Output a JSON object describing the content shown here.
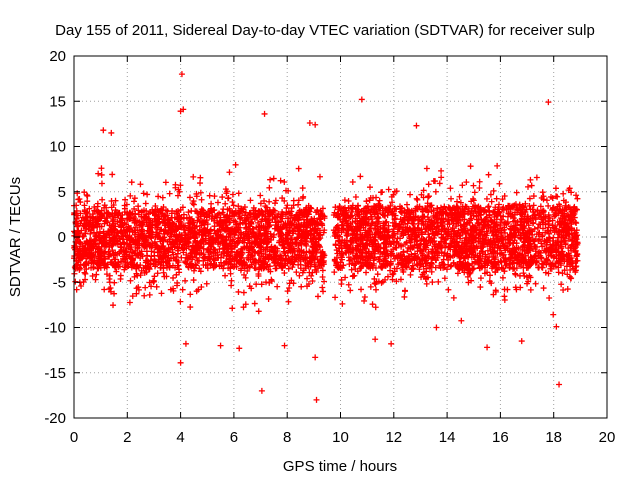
{
  "chart_data": {
    "type": "scatter",
    "title": "Day 155 of 2011, Sidereal Day-to-day VTEC variation (SDTVAR) for receiver sulp",
    "xlabel": "GPS time / hours",
    "ylabel": "SDTVAR / TECUs",
    "xlim": [
      0,
      20
    ],
    "ylim": [
      -20,
      20
    ],
    "xticks": [
      "0",
      "2",
      "4",
      "6",
      "8",
      "10",
      "12",
      "14",
      "16",
      "18",
      "20"
    ],
    "yticks": [
      "-20",
      "-15",
      "-10",
      "-5",
      "0",
      "5",
      "10",
      "15",
      "20"
    ],
    "grid": true,
    "marker": "plus",
    "color": "#ff0000",
    "series": [
      {
        "name": "SDTVAR",
        "segments": [
          {
            "x_start": 0.0,
            "x_end": 9.4,
            "core_low": -3.5,
            "core_high": 3.0,
            "spread_low": -10.5,
            "spread_high": 9.0
          },
          {
            "x_start": 9.75,
            "x_end": 18.9,
            "core_low": -3.5,
            "core_high": 3.5,
            "spread_low": -12.0,
            "spread_high": 10.0
          }
        ],
        "outliers": [
          {
            "x": 4.05,
            "y": 18.0
          },
          {
            "x": 4.1,
            "y": 14.1
          },
          {
            "x": 4.0,
            "y": 13.9
          },
          {
            "x": 7.15,
            "y": 13.6
          },
          {
            "x": 10.8,
            "y": 15.2
          },
          {
            "x": 17.8,
            "y": 14.9
          },
          {
            "x": 12.85,
            "y": 12.3
          },
          {
            "x": 1.1,
            "y": 11.8
          },
          {
            "x": 1.4,
            "y": 11.5
          },
          {
            "x": 8.85,
            "y": 12.6
          },
          {
            "x": 9.05,
            "y": 12.4
          },
          {
            "x": 7.05,
            "y": -17.0
          },
          {
            "x": 9.1,
            "y": -18.0
          },
          {
            "x": 18.2,
            "y": -16.3
          },
          {
            "x": 4.0,
            "y": -13.9
          },
          {
            "x": 9.05,
            "y": -13.3
          },
          {
            "x": 6.2,
            "y": -12.3
          },
          {
            "x": 15.5,
            "y": -12.2
          },
          {
            "x": 16.8,
            "y": -11.5
          },
          {
            "x": 11.9,
            "y": -11.8
          },
          {
            "x": 5.5,
            "y": -12.0
          },
          {
            "x": 4.2,
            "y": -11.8
          },
          {
            "x": 7.9,
            "y": -12.0
          },
          {
            "x": 11.3,
            "y": -11.3
          },
          {
            "x": 13.6,
            "y": -10.0
          },
          {
            "x": 18.1,
            "y": -9.9
          }
        ]
      }
    ]
  }
}
